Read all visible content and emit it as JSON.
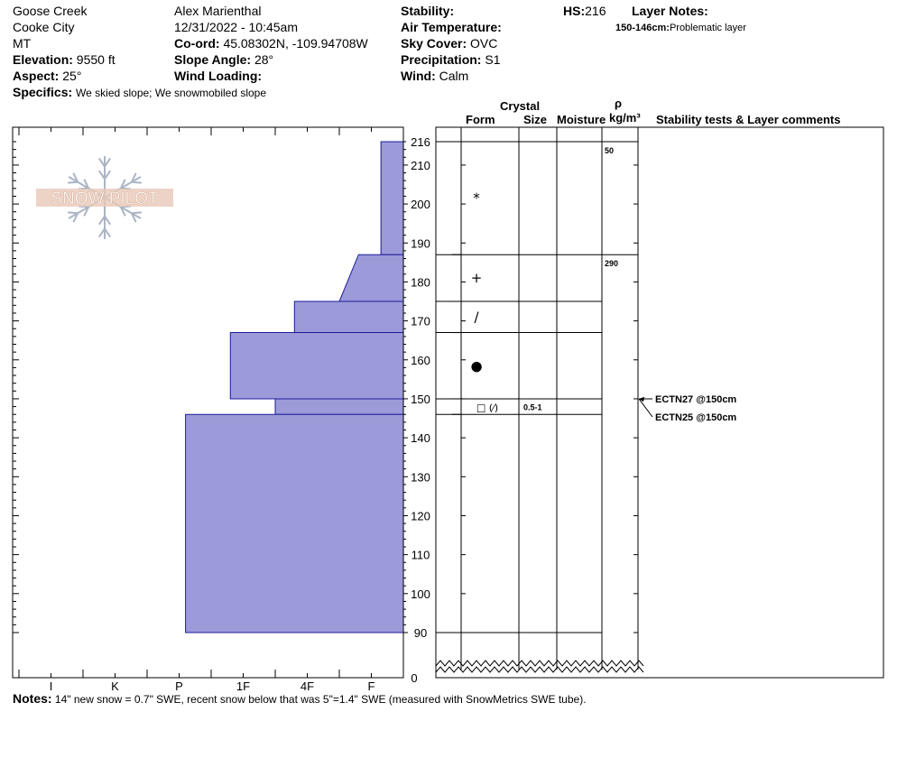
{
  "header": {
    "location": "Goose Creek",
    "area": "Cooke City",
    "state": "MT",
    "elevation_label": "Elevation:",
    "elevation": "9550 ft",
    "aspect_label": "Aspect:",
    "aspect": "25°",
    "specifics_label": "Specifics:",
    "specifics": "We skied slope; We snowmobiled slope",
    "observer": "Alex Marienthal",
    "datetime": "12/31/2022 - 10:45am",
    "coord_label": "Co-ord:",
    "coord": "45.08302N, -109.94708W",
    "slope_label": "Slope Angle:",
    "slope": "28°",
    "wind_loading_label": "Wind Loading:",
    "stability_label": "Stability:",
    "air_temp_label": "Air Temperature:",
    "sky_label": "Sky Cover:",
    "sky": "OVC",
    "precip_label": "Precipitation:",
    "precip": "S1",
    "wind_label": "Wind:",
    "wind": "Calm",
    "hs_label": "HS:",
    "hs": "216",
    "layer_notes_label": "Layer Notes:",
    "layer_note_range": "150-146cm:",
    "layer_note_text": "Problematic layer"
  },
  "logo_text": "SNOW PILOT",
  "columns": {
    "crystal": "Crystal",
    "form": "Form",
    "size": "Size",
    "moisture": "Moisture",
    "rho": "ρ",
    "density_unit": "kg/m³",
    "tests": "Stability tests & Layer comments"
  },
  "notes_label": "Notes:",
  "notes": "14\" new snow = 0.7\" SWE, recent snow below that was 5\"=1.4\" SWE (measured with SnowMetrics SWE tube).",
  "chart_data": {
    "type": "snow-profile",
    "y_axis": {
      "label": "cm",
      "range": [
        90,
        216
      ],
      "ticks": [
        90,
        100,
        110,
        120,
        130,
        140,
        150,
        160,
        170,
        180,
        190,
        200,
        210,
        216
      ],
      "break_label": "0"
    },
    "hardness_axis": {
      "ticks": [
        "I",
        "K",
        "P",
        "1F",
        "4F",
        "F"
      ]
    },
    "layers": [
      {
        "top": 216,
        "bottom": 187,
        "hardness_top": 0.35,
        "hardness_bottom": 0.35,
        "form": "*",
        "density": "50"
      },
      {
        "top": 187,
        "bottom": 175,
        "hardness_top": 0.7,
        "hardness_bottom": 1.0,
        "form": "+",
        "density": "290"
      },
      {
        "top": 175,
        "bottom": 167,
        "hardness_top": 1.7,
        "hardness_bottom": 1.7,
        "form": "/"
      },
      {
        "top": 167,
        "bottom": 150,
        "hardness_top": 2.7,
        "hardness_bottom": 2.7,
        "form": "●"
      },
      {
        "top": 150,
        "bottom": 146,
        "hardness_top": 2.0,
        "hardness_bottom": 2.0,
        "form": "□ (⁄)",
        "size": "0.5-1"
      },
      {
        "top": 146,
        "bottom": 90,
        "hardness_top": 3.4,
        "hardness_bottom": 3.4
      }
    ],
    "tests": [
      {
        "label": "ECTN27 @150cm",
        "depth": 150
      },
      {
        "label": "ECTN25 @150cm",
        "depth": 150
      }
    ]
  }
}
